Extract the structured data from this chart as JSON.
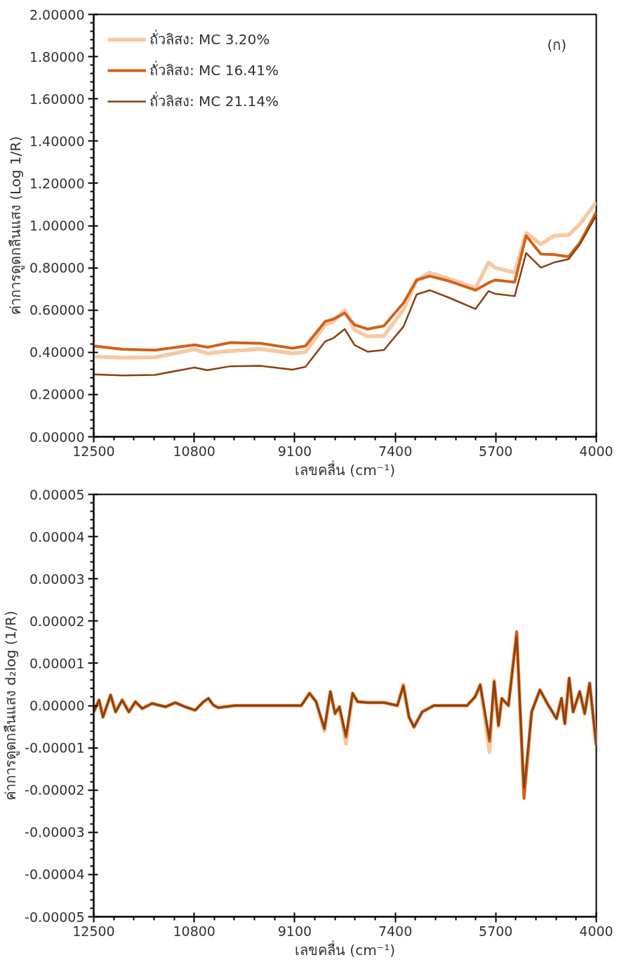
{
  "chart_data": [
    {
      "type": "line",
      "xlabel": "เลขคลื่น (cm⁻¹)",
      "ylabel": "ค่าการดูดกลืนแสง (Log 1/R)",
      "annotations": [
        "(ก)"
      ],
      "xlim": [
        12500,
        4000
      ],
      "xticks": [
        12500,
        10800,
        9100,
        7400,
        5700,
        4000
      ],
      "ylim": [
        0,
        2
      ],
      "yticks": [
        {
          "value": 0,
          "label": "0.00000"
        },
        {
          "value": 0.2,
          "label": "0.20000"
        },
        {
          "value": 0.4,
          "label": "0.40000"
        },
        {
          "value": 0.6,
          "label": "0.60000"
        },
        {
          "value": 0.8,
          "label": "0.80000"
        },
        {
          "value": 1,
          "label": "1.00000"
        },
        {
          "value": 1.2,
          "label": "1.20000"
        },
        {
          "value": 1.4,
          "label": "1.40000"
        },
        {
          "value": 1.6,
          "label": "1.60000"
        },
        {
          "value": 1.8,
          "label": "1.80000"
        },
        {
          "value": 2,
          "label": "2.00000"
        }
      ],
      "grid": false,
      "legend": "top left",
      "marker": "none",
      "line_style": "solid",
      "x": [
        12500,
        12013,
        11461,
        10797,
        10576,
        10189,
        9692,
        9139,
        8918,
        8586,
        8448,
        8255,
        8089,
        7868,
        7591,
        7260,
        7038,
        6817,
        6486,
        6043,
        5822,
        5711,
        5380,
        5186,
        4937,
        4716,
        4468,
        4274,
        4000
      ],
      "series": [
        {
          "name": "ถั่วลิสง: MC 3.20%",
          "color": "#f6c9a4",
          "values": [
            0.379,
            0.374,
            0.376,
            0.414,
            0.395,
            0.406,
            0.416,
            0.395,
            0.401,
            0.53,
            0.546,
            0.599,
            0.506,
            0.475,
            0.478,
            0.602,
            0.742,
            0.777,
            0.748,
            0.705,
            0.825,
            0.801,
            0.777,
            0.965,
            0.912,
            0.952,
            0.955,
            1.008,
            1.111
          ]
        },
        {
          "name": "ถั่วลิสง: MC 16.41%",
          "color": "#d0621a",
          "values": [
            0.43,
            0.414,
            0.41,
            0.435,
            0.424,
            0.446,
            0.443,
            0.419,
            0.43,
            0.546,
            0.557,
            0.586,
            0.53,
            0.51,
            0.525,
            0.634,
            0.742,
            0.761,
            0.737,
            0.694,
            0.729,
            0.742,
            0.732,
            0.952,
            0.865,
            0.863,
            0.853,
            0.92,
            1.064
          ]
        },
        {
          "name": "ถั่วลิสง: MC 21.14%",
          "color": "#8b4010",
          "values": [
            0.295,
            0.29,
            0.293,
            0.328,
            0.315,
            0.334,
            0.336,
            0.318,
            0.331,
            0.451,
            0.467,
            0.51,
            0.435,
            0.403,
            0.411,
            0.522,
            0.674,
            0.694,
            0.658,
            0.605,
            0.69,
            0.677,
            0.666,
            0.87,
            0.801,
            0.825,
            0.841,
            0.912,
            1.048
          ]
        }
      ]
    },
    {
      "type": "line",
      "xlabel": "เลขคลื่น (cm⁻¹)",
      "ylabel": "ค่าการดูดกลืนแสง d₂log (1/R)",
      "xlim": [
        12500,
        4000
      ],
      "xticks": [
        12500,
        10800,
        9100,
        7400,
        5700,
        4000
      ],
      "ylim": [
        -5e-05,
        5e-05
      ],
      "yticks": [
        {
          "value": -5e-05,
          "label": "-0.00005"
        },
        {
          "value": -4e-05,
          "label": "-0.00004"
        },
        {
          "value": -3e-05,
          "label": "-0.00003"
        },
        {
          "value": -2e-05,
          "label": "-0.00002"
        },
        {
          "value": -1e-05,
          "label": "-0.00001"
        },
        {
          "value": 0,
          "label": "0.00000"
        },
        {
          "value": 1e-05,
          "label": "0.00001"
        },
        {
          "value": 2e-05,
          "label": "0.00002"
        },
        {
          "value": 3e-05,
          "label": "0.00003"
        },
        {
          "value": 4e-05,
          "label": "0.00004"
        },
        {
          "value": 5e-05,
          "label": "0.00005"
        }
      ],
      "grid": false,
      "legend": false,
      "marker": "none",
      "line_style": "solid",
      "x": [
        12500,
        12410,
        12343,
        12214,
        12130,
        12018,
        11906,
        11794,
        11681,
        11513,
        11289,
        11121,
        10952,
        10784,
        10644,
        10560,
        10476,
        10392,
        10111,
        9270,
        8990,
        8850,
        8738,
        8598,
        8497,
        8418,
        8345,
        8233,
        8121,
        8037,
        7869,
        7589,
        7364,
        7263,
        7168,
        7084,
        6944,
        6747,
        6187,
        6047,
        5962,
        5805,
        5727,
        5654,
        5598,
        5486,
        5346,
        5222,
        5093,
        4953,
        4813,
        4673,
        4588,
        4532,
        4459,
        4392,
        4280,
        4196,
        4112,
        4000
      ],
      "series": [
        {
          "color": "#f6c9a4",
          "values": [
            -1.5e-06,
            1.3e-06,
            -2.7e-06,
            2.5e-06,
            -1.5e-06,
            1.3e-06,
            -1.5e-06,
            9e-07,
            -7e-07,
            5e-07,
            -3e-07,
            7e-07,
            -3e-07,
            -1.1e-06,
            9e-07,
            1.7e-06,
            1e-07,
            -5e-07,
            0,
            0,
            0,
            2.9e-06,
            9e-07,
            -6e-06,
            3.3e-06,
            -1.9e-06,
            -3e-07,
            -9e-06,
            2.9e-06,
            9e-07,
            7e-07,
            7e-07,
            0,
            5e-06,
            -2.7e-06,
            -5.1e-06,
            -1.5e-06,
            0,
            0,
            2.1e-06,
            5e-06,
            -1.1e-05,
            6e-06,
            -5e-06,
            1.7e-06,
            0,
            1.7e-05,
            -2.1e-05,
            -1.5e-06,
            3.7e-06,
            1e-07,
            -3.1e-06,
            1.7e-06,
            -4.3e-06,
            6.5e-06,
            -1.5e-06,
            3.3e-06,
            -1.9e-06,
            5.3e-06,
            -9.5e-06
          ]
        },
        {
          "color": "#d0621a",
          "values": [
            -1.5e-06,
            1.3e-06,
            -2.7e-06,
            2.5e-06,
            -1.5e-06,
            1.3e-06,
            -1.5e-06,
            9e-07,
            -7e-07,
            5e-07,
            -3e-07,
            7e-07,
            -3e-07,
            -1.1e-06,
            9e-07,
            1.7e-06,
            1e-07,
            -5e-07,
            0,
            0,
            0,
            2.9e-06,
            9e-07,
            -5.5e-06,
            3.3e-06,
            -1.9e-06,
            -3e-07,
            -7.5e-06,
            2.9e-06,
            9e-07,
            7e-07,
            7e-07,
            0,
            4.7e-06,
            -2.7e-06,
            -5.1e-06,
            -1.5e-06,
            0,
            0,
            2.1e-06,
            4.9e-06,
            -8.5e-06,
            5.7e-06,
            -4.7e-06,
            1.7e-06,
            0,
            1.75e-05,
            -2.2e-05,
            -1.5e-06,
            3.7e-06,
            1e-07,
            -3.1e-06,
            1.7e-06,
            -4.3e-06,
            6.5e-06,
            -1.5e-06,
            3.3e-06,
            -1.9e-06,
            5.3e-06,
            -9.5e-06
          ]
        },
        {
          "color": "#8b4010",
          "values": [
            -1.5e-06,
            1.3e-06,
            -2.7e-06,
            2.5e-06,
            -1.5e-06,
            1.3e-06,
            -1.5e-06,
            9e-07,
            -7e-07,
            5e-07,
            -3e-07,
            7e-07,
            -3e-07,
            -1.1e-06,
            9e-07,
            1.7e-06,
            1e-07,
            -5e-07,
            0,
            0,
            0,
            2.9e-06,
            9e-07,
            -5.5e-06,
            3.3e-06,
            -1.9e-06,
            -3e-07,
            -7.1e-06,
            2.9e-06,
            9e-07,
            7e-07,
            7e-07,
            0,
            4.7e-06,
            -2.7e-06,
            -5.1e-06,
            -1.5e-06,
            0,
            0,
            2.1e-06,
            4.9e-06,
            -7.9e-06,
            5.7e-06,
            -4.7e-06,
            1.7e-06,
            0,
            1.64e-05,
            -1.95e-05,
            -1.5e-06,
            3.7e-06,
            1e-07,
            -3.1e-06,
            1.7e-06,
            -4.3e-06,
            6.5e-06,
            -1.5e-06,
            3.3e-06,
            -1.9e-06,
            5.3e-06,
            -9.5e-06
          ]
        }
      ]
    }
  ]
}
